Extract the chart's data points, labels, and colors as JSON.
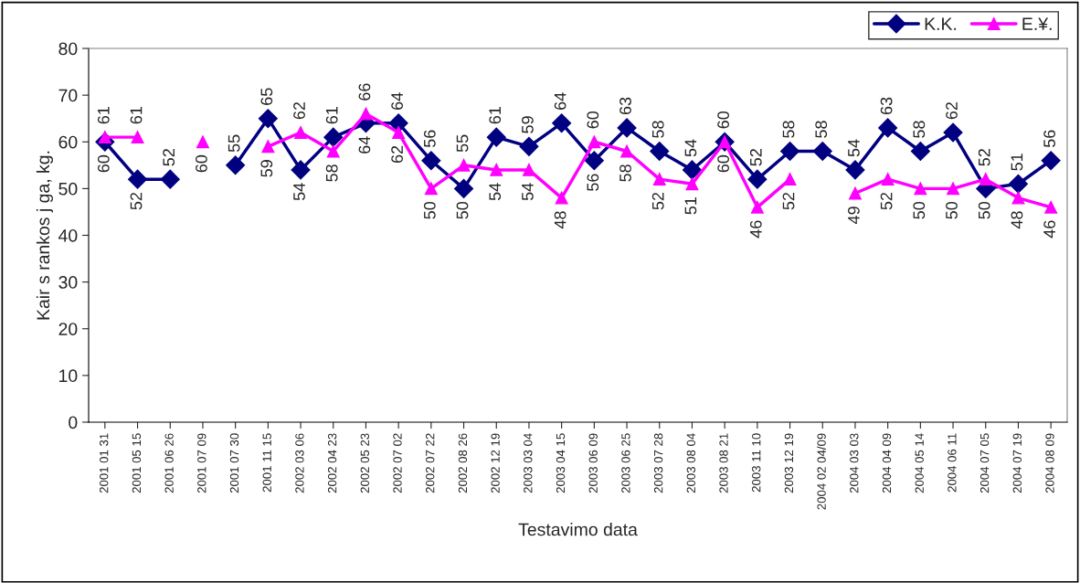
{
  "chart_data": {
    "type": "line",
    "xlabel": "Testavimo data",
    "ylabel": "Kair s rankos j ga, kg.",
    "categories": [
      "2001 01 31",
      "2001 05 15",
      "2001 06 26",
      "2001 07 09",
      "2001 07 30",
      "2001 11 15",
      "2002 03 06",
      "2002 04 23",
      "2002 05 23",
      "2002 07 02",
      "2002 07 22",
      "2002 08 26",
      "2002 12 19",
      "2003 03 04",
      "2003 04 15",
      "2003 06 09",
      "2003 06 25",
      "2003 07 28",
      "2003 08 04",
      "2003 08 21",
      "2003 11 10",
      "2003 12 19",
      "2004 02 04/09",
      "2004 03 03",
      "2004 04 09",
      "2004 05 14",
      "2004 06 11",
      "2004 07 05",
      "2004 07 19",
      "2004 08 09"
    ],
    "series": [
      {
        "name": "K.K.",
        "color": "#000080",
        "marker": "diamond",
        "values": [
          60,
          52,
          52,
          null,
          55,
          65,
          54,
          61,
          64,
          64,
          56,
          50,
          61,
          59,
          64,
          56,
          63,
          58,
          54,
          60,
          52,
          58,
          58,
          54,
          63,
          58,
          62,
          50,
          51,
          56
        ]
      },
      {
        "name": "E.¥.",
        "color": "#ff00ff",
        "marker": "triangle",
        "values": [
          61,
          61,
          null,
          60,
          null,
          59,
          62,
          58,
          66,
          62,
          50,
          55,
          54,
          54,
          48,
          60,
          58,
          52,
          51,
          60,
          46,
          52,
          null,
          49,
          52,
          50,
          50,
          52,
          48,
          46
        ]
      }
    ],
    "ylim": [
      0,
      80
    ],
    "yticks": [
      0,
      10,
      20,
      30,
      40,
      50,
      60,
      70,
      80
    ],
    "data_labels": true,
    "grid": false,
    "legend": "top right",
    "line_style": "solid"
  }
}
